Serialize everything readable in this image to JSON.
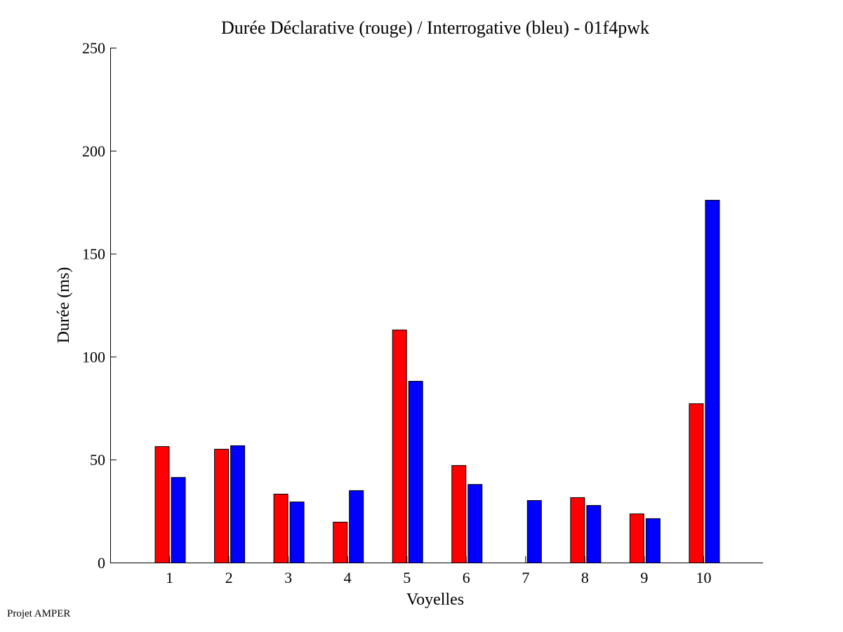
{
  "chart_data": {
    "type": "bar",
    "title": "Durée Déclarative (rouge) / Interrogative (bleu) - 01f4pwk",
    "xlabel": "Voyelles",
    "ylabel": "Durée (ms)",
    "categories": [
      "1",
      "2",
      "3",
      "4",
      "5",
      "6",
      "7",
      "8",
      "9",
      "10"
    ],
    "series": [
      {
        "name": "Déclarative",
        "color": "#ff0000",
        "values": [
          56.5,
          55.2,
          33.4,
          19.8,
          113.1,
          47.3,
          0,
          31.7,
          23.8,
          77.3
        ]
      },
      {
        "name": "Interrogative",
        "color": "#0000ff",
        "values": [
          41.5,
          56.9,
          29.6,
          35.1,
          88.2,
          38.1,
          30.3,
          27.9,
          21.5,
          176.1
        ]
      }
    ],
    "xlim": [
      0,
      11
    ],
    "ylim": [
      0,
      250
    ],
    "yticks": [
      "0",
      "50",
      "100",
      "150",
      "200",
      "250"
    ],
    "grid": false
  },
  "footer": "Projet AMPER"
}
